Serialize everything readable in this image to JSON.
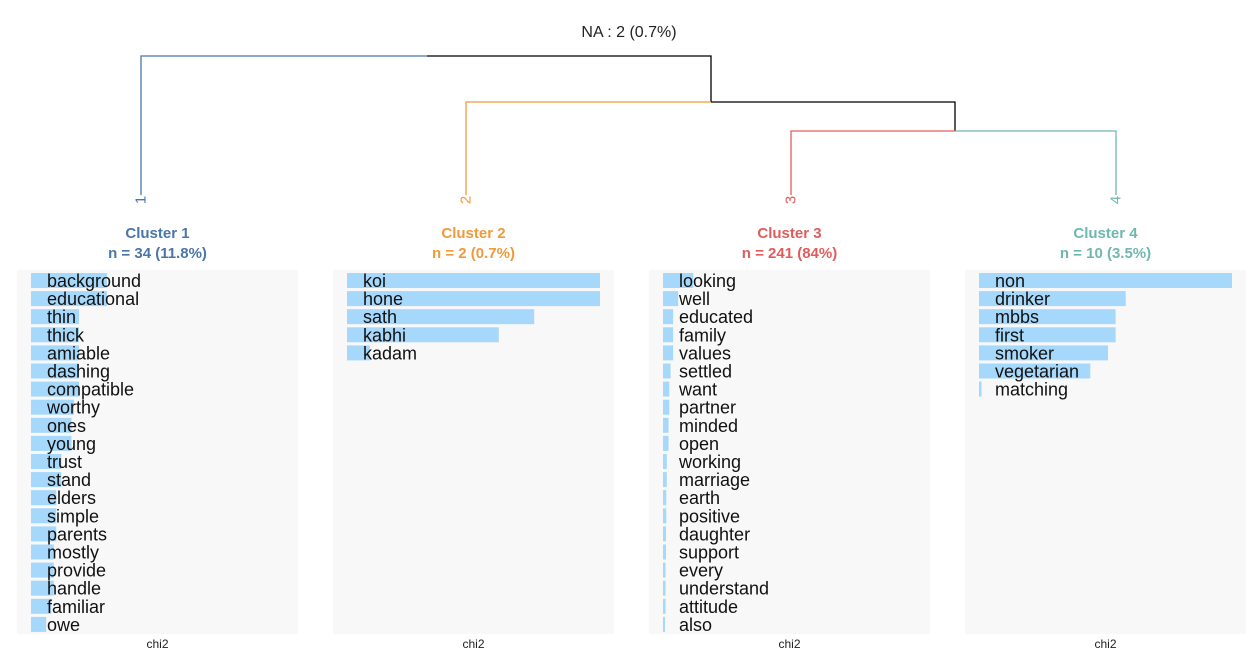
{
  "na_label": "NA : 2 (0.7%)",
  "colors": {
    "panel_bg": "#f8f8f8",
    "bar": "#a6d8fc",
    "root_line": "#000000"
  },
  "chart_data": {
    "type": "bar",
    "orientation": "horizontal",
    "xlabel": "chi2",
    "clusters": [
      {
        "number": "1",
        "title": "Cluster 1",
        "subtitle": "n = 34 (11.8%)",
        "color": "#4a76a8",
        "terms": [
          "background",
          "educational",
          "thin",
          "thick",
          "amiable",
          "dashing",
          "compatible",
          "worthy",
          "ones",
          "young",
          "trust",
          "stand",
          "elders",
          "simple",
          "parents",
          "mostly",
          "provide",
          "handle",
          "familiar",
          "owe"
        ],
        "values": [
          0.3,
          0.3,
          0.19,
          0.19,
          0.19,
          0.19,
          0.19,
          0.17,
          0.16,
          0.16,
          0.12,
          0.12,
          0.1,
          0.1,
          0.1,
          0.09,
          0.09,
          0.09,
          0.08,
          0.06
        ]
      },
      {
        "number": "2",
        "title": "Cluster 2",
        "subtitle": "n = 2 (0.7%)",
        "color": "#f09a3a",
        "terms": [
          "koi",
          "hone",
          "sath",
          "kabhi",
          "kadam"
        ],
        "values": [
          1.0,
          1.0,
          0.74,
          0.6,
          0.09
        ]
      },
      {
        "number": "3",
        "title": "Cluster 3",
        "subtitle": "n = 241 (84%)",
        "color": "#e05c5c",
        "terms": [
          "looking",
          "well",
          "educated",
          "family",
          "values",
          "settled",
          "want",
          "partner",
          "minded",
          "open",
          "working",
          "marriage",
          "earth",
          "positive",
          "daughter",
          "support",
          "every",
          "understand",
          "attitude",
          "also"
        ],
        "values": [
          0.12,
          0.06,
          0.04,
          0.04,
          0.04,
          0.03,
          0.025,
          0.025,
          0.022,
          0.022,
          0.015,
          0.015,
          0.013,
          0.013,
          0.012,
          0.012,
          0.01,
          0.01,
          0.01,
          0.008
        ]
      },
      {
        "number": "4",
        "title": "Cluster 4",
        "subtitle": "n = 10 (3.5%)",
        "color": "#6fb8b1",
        "terms": [
          "non",
          "drinker",
          "mbbs",
          "first",
          "smoker",
          "vegetarian",
          "matching"
        ],
        "values": [
          1.0,
          0.58,
          0.54,
          0.54,
          0.51,
          0.44,
          0.01
        ]
      }
    ]
  }
}
